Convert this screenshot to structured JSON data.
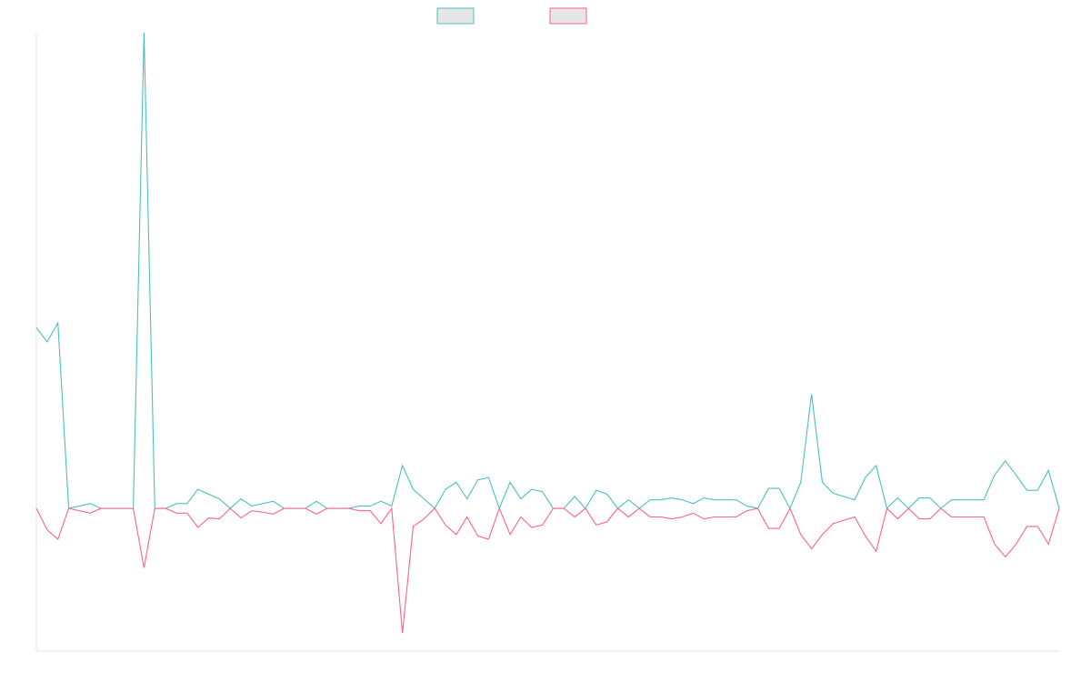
{
  "chart_data": {
    "type": "line",
    "title": "",
    "xlabel": "",
    "ylabel": "",
    "ylim": [
      -0.3,
      1.0
    ],
    "grid": false,
    "legend_placement": "top-center",
    "series": [
      {
        "color": "#4bc0c0",
        "fill": "#e6e6e6",
        "values": [
          0.38,
          0.35,
          0.39,
          0.0,
          0.005,
          0.01,
          0.0,
          0.0,
          0.0,
          0.0,
          1.0,
          0.0,
          0.0,
          0.01,
          0.01,
          0.04,
          0.03,
          0.02,
          0.0,
          0.02,
          0.005,
          0.01,
          0.015,
          0.0,
          0.0,
          0.0,
          0.015,
          0.0,
          0.0,
          0.0,
          0.005,
          0.005,
          0.015,
          0.005,
          0.09,
          0.04,
          0.02,
          0.0,
          0.04,
          0.055,
          0.02,
          0.06,
          0.065,
          0.0,
          0.055,
          0.02,
          0.04,
          0.035,
          0.0,
          0.0,
          0.025,
          0.0,
          0.038,
          0.03,
          0.0,
          0.018,
          0.0,
          0.018,
          0.018,
          0.022,
          0.018,
          0.01,
          0.022,
          0.018,
          0.018,
          0.018,
          0.005,
          0.0,
          0.042,
          0.042,
          0.0,
          0.055,
          0.24,
          0.055,
          0.032,
          0.025,
          0.018,
          0.065,
          0.09,
          0.0,
          0.022,
          0.0,
          0.022,
          0.022,
          0.0,
          0.018,
          0.018,
          0.018,
          0.018,
          0.07,
          0.1,
          0.07,
          0.038,
          0.038,
          0.08,
          0.0
        ]
      },
      {
        "color": "#ff6384",
        "fill": "#e6e6e6",
        "values": [
          0.0,
          -0.045,
          -0.065,
          0.0,
          -0.005,
          -0.01,
          0.0,
          0.0,
          0.0,
          0.0,
          -0.125,
          0.0,
          0.0,
          -0.01,
          -0.01,
          -0.04,
          -0.02,
          -0.022,
          0.0,
          -0.02,
          -0.005,
          -0.008,
          -0.012,
          0.0,
          0.0,
          0.0,
          -0.012,
          0.0,
          0.0,
          0.0,
          -0.005,
          -0.005,
          -0.032,
          0.0,
          -0.262,
          -0.038,
          -0.022,
          0.0,
          -0.035,
          -0.055,
          -0.018,
          -0.058,
          -0.065,
          0.0,
          -0.055,
          -0.018,
          -0.04,
          -0.035,
          0.0,
          0.0,
          -0.018,
          0.0,
          -0.035,
          -0.028,
          0.0,
          -0.018,
          0.0,
          -0.018,
          -0.018,
          -0.022,
          -0.018,
          -0.01,
          -0.022,
          -0.018,
          -0.018,
          -0.018,
          -0.005,
          0.0,
          -0.042,
          -0.042,
          0.0,
          -0.055,
          -0.085,
          -0.055,
          -0.032,
          -0.025,
          -0.018,
          -0.058,
          -0.09,
          0.0,
          -0.022,
          0.0,
          -0.022,
          -0.022,
          0.0,
          -0.018,
          -0.018,
          -0.018,
          -0.018,
          -0.075,
          -0.102,
          -0.075,
          -0.038,
          -0.038,
          -0.075,
          0.0
        ]
      }
    ]
  }
}
